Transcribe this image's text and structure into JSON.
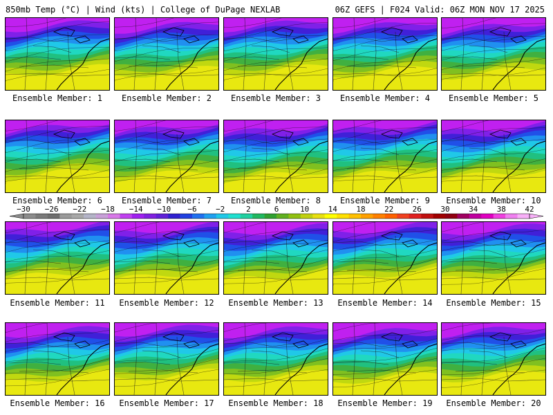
{
  "header": {
    "left": "850mb Temp (°C) | Wind (kts) | College of DuPage NEXLAB",
    "right": "06Z GEFS | F024 Valid: 06Z MON NOV 17 2025"
  },
  "caption_prefix": "Ensemble Member: ",
  "members": [
    1,
    2,
    3,
    4,
    5,
    6,
    7,
    8,
    9,
    10,
    11,
    12,
    13,
    14,
    15,
    16,
    17,
    18,
    19,
    20
  ],
  "colorbar": {
    "labels": [
      "−30",
      "−26",
      "−22",
      "−18",
      "−14",
      "−10",
      "−6",
      "−2",
      "2",
      "6",
      "10",
      "14",
      "18",
      "22",
      "26",
      "30",
      "34",
      "38",
      "42"
    ],
    "colors": [
      "#8c8c8c",
      "#7a7a7a",
      "#6e6e6e",
      "#9a9a9a",
      "#a8a8a8",
      "#b4b4c8",
      "#c8a0d8",
      "#d878e8",
      "#c040f0",
      "#a020f0",
      "#8020e0",
      "#6020d8",
      "#3020d0",
      "#2040e0",
      "#2070f0",
      "#20a0f0",
      "#20c8e8",
      "#20e0d0",
      "#20d0a0",
      "#20b860",
      "#30a030",
      "#60b020",
      "#90c010",
      "#c0d010",
      "#e8e010",
      "#ffff00",
      "#ffe000",
      "#ffc000",
      "#ffa000",
      "#ff8000",
      "#ff6000",
      "#f04020",
      "#e02020",
      "#c01010",
      "#a00000",
      "#900010",
      "#a00060",
      "#c000a0",
      "#e000c0",
      "#f040e0",
      "#f080f0",
      "#f8b0f8"
    ]
  },
  "map_palette": [
    "#c020f0",
    "#8020e8",
    "#4020d8",
    "#2050e8",
    "#2090f0",
    "#20c8e8",
    "#20d8c0",
    "#20c080",
    "#40b040",
    "#80c020",
    "#c0d810",
    "#e8e810"
  ]
}
